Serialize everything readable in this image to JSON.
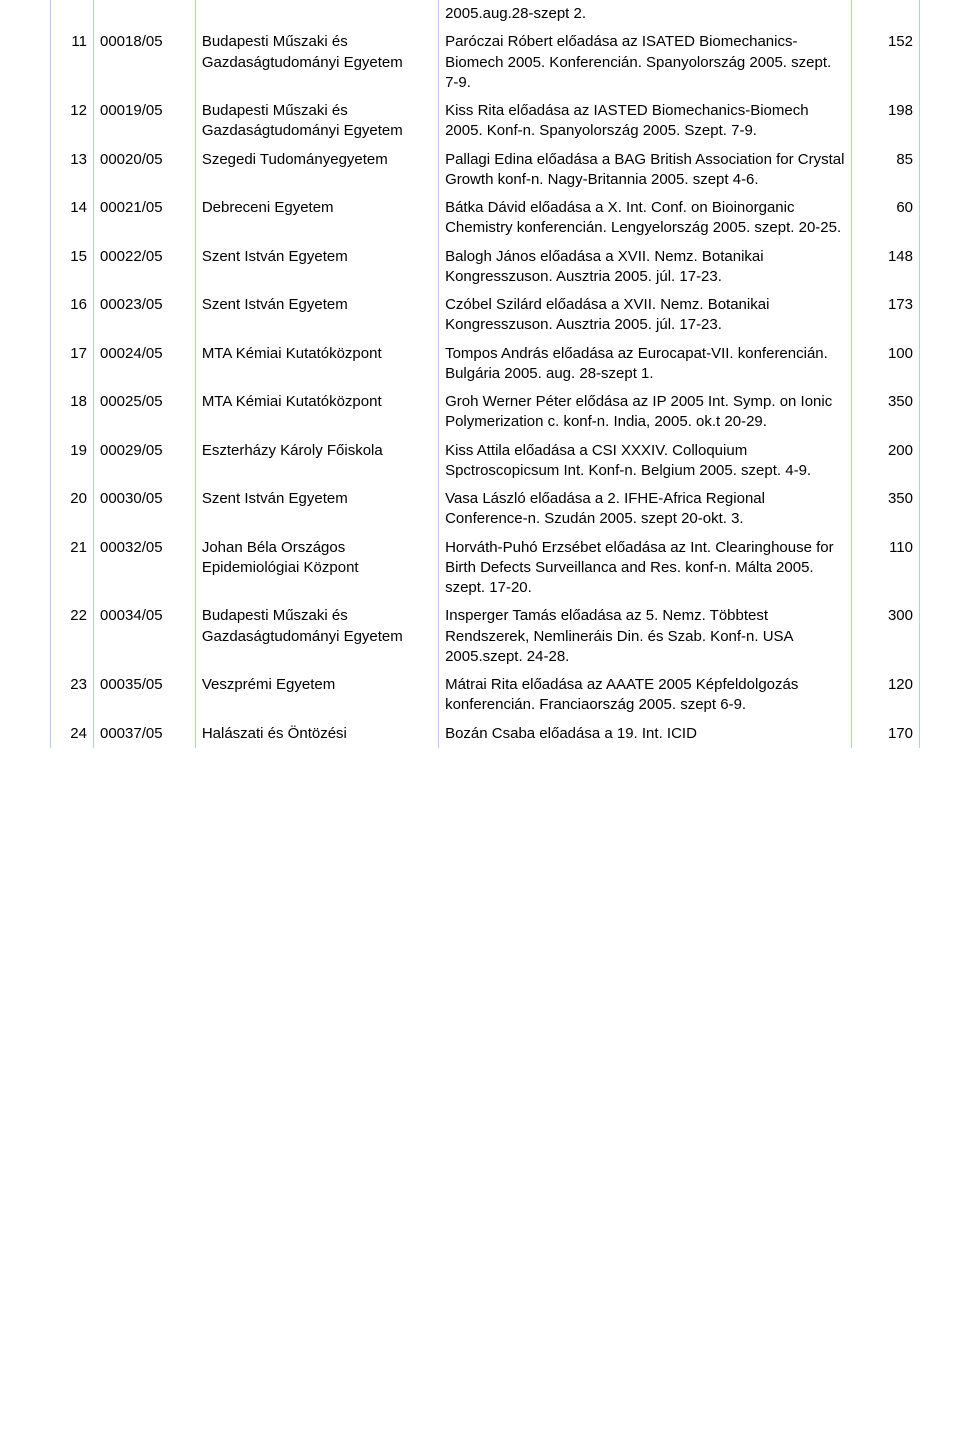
{
  "header_row": {
    "c4": "2005.aug.28-szept 2."
  },
  "rows": [
    {
      "idx": "11",
      "code": "00018/05",
      "inst": "Budapesti Műszaki és Gazdaságtudományi Egyetem",
      "desc": "Paróczai Róbert előadása az ISATED Biomechanics-Biomech 2005. Konferencián. Spanyolország 2005. szept. 7-9.",
      "amount": "152"
    },
    {
      "idx": "12",
      "code": "00019/05",
      "inst": "Budapesti Műszaki és Gazdaságtudományi Egyetem",
      "desc": "Kiss Rita előadása az IASTED Biomechanics-Biomech 2005. Konf-n. Spanyolország 2005. Szept. 7-9.",
      "amount": "198"
    },
    {
      "idx": "13",
      "code": "00020/05",
      "inst": "Szegedi Tudományegyetem",
      "desc": "Pallagi Edina előadása a BAG British Association for Crystal Growth konf-n. Nagy-Britannia 2005. szept 4-6.",
      "amount": "85"
    },
    {
      "idx": "14",
      "code": "00021/05",
      "inst": "Debreceni Egyetem",
      "desc": "Bátka Dávid előadása a X. Int. Conf. on Bioinorganic Chemistry konferencián. Lengyelország 2005. szept. 20-25.",
      "amount": "60"
    },
    {
      "idx": "15",
      "code": "00022/05",
      "inst": "Szent István Egyetem",
      "desc": "Balogh János előadása a XVII. Nemz. Botanikai Kongresszuson. Ausztria 2005. júl. 17-23.",
      "amount": "148"
    },
    {
      "idx": "16",
      "code": "00023/05",
      "inst": "Szent István Egyetem",
      "desc": "Czóbel Szilárd előadása a XVII. Nemz. Botanikai Kongresszuson. Ausztria 2005. júl. 17-23.",
      "amount": "173"
    },
    {
      "idx": "17",
      "code": "00024/05",
      "inst": "MTA Kémiai Kutatóközpont",
      "desc": "Tompos András előadása az Eurocapat-VII. konferencián. Bulgária 2005. aug. 28-szept 1.",
      "amount": "100"
    },
    {
      "idx": "18",
      "code": "00025/05",
      "inst": "MTA Kémiai Kutatóközpont",
      "desc": "Groh Werner Péter elődása az IP 2005 Int. Symp. on Ionic Polymerization c. konf-n. India, 2005. ok.t 20-29.",
      "amount": "350"
    },
    {
      "idx": "19",
      "code": "00029/05",
      "inst": "Eszterházy Károly Főiskola",
      "desc": "Kiss Attila előadása a CSI XXXIV. Colloquium Spctroscopicsum Int. Konf-n. Belgium 2005. szept. 4-9.",
      "amount": "200"
    },
    {
      "idx": "20",
      "code": "00030/05",
      "inst": "Szent István Egyetem",
      "desc": "Vasa László előadása a 2. IFHE-Africa Regional Conference-n. Szudán 2005. szept 20-okt. 3.",
      "amount": "350"
    },
    {
      "idx": "21",
      "code": "00032/05",
      "inst": "Johan Béla Országos Epidemiológiai Központ",
      "desc": "Horváth-Puhó Erzsébet előadása az Int. Clearinghouse for Birth Defects Surveillanca and Res. konf-n. Málta 2005. szept. 17-20.",
      "amount": "110"
    },
    {
      "idx": "22",
      "code": "00034/05",
      "inst": "Budapesti Műszaki és Gazdaságtudományi Egyetem",
      "desc": "Insperger Tamás előadása az 5. Nemz. Többtest Rendszerek, Nemlineráis Din. és Szab. Konf-n. USA 2005.szept. 24-28.",
      "amount": "300"
    },
    {
      "idx": "23",
      "code": "00035/05",
      "inst": "Veszprémi Egyetem",
      "desc": "Mátrai Rita előadása az AAATE 2005 Képfeldolgozás konferencián. Franciaország 2005. szept 6-9.",
      "amount": "120"
    },
    {
      "idx": "24",
      "code": "00037/05",
      "inst": "Halászati és Öntözési",
      "desc": "Bozán Csaba előadása a 19. Int. ICID",
      "amount": "170"
    }
  ]
}
